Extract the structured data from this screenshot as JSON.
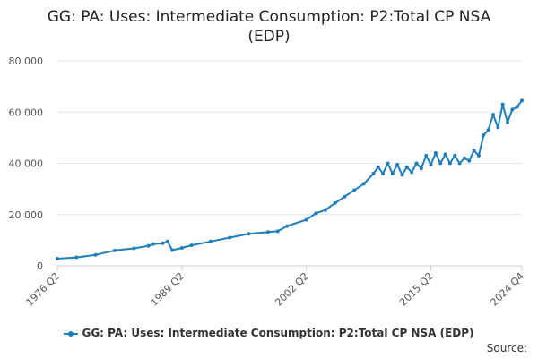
{
  "chart_data": {
    "type": "line",
    "title_lines": [
      "GG: PA: Uses: Intermediate Consumption: P2:Total CP NSA",
      "(EDP)"
    ],
    "ylim": [
      0,
      80000
    ],
    "yticks": [
      0,
      20000,
      40000,
      60000,
      80000
    ],
    "ytick_labels": [
      "0",
      "20 000",
      "40 000",
      "60 000",
      "80 000"
    ],
    "xlim": [
      "1976 Q2",
      "2024 Q4"
    ],
    "xticks": [
      "1976 Q2",
      "1989 Q2",
      "2002 Q2",
      "2015 Q2",
      "2024 Q4"
    ],
    "grid": true,
    "legend_position": "bottom",
    "series": [
      {
        "name": "GG: PA: Uses: Intermediate Consumption: P2:Total CP NSA (EDP)",
        "color": "#1f7dbb",
        "points": [
          [
            "1976 Q2",
            2800
          ],
          [
            "1978 Q2",
            3300
          ],
          [
            "1980 Q2",
            4300
          ],
          [
            "1982 Q2",
            6000
          ],
          [
            "1984 Q2",
            6800
          ],
          [
            "1985 Q4",
            7800
          ],
          [
            "1986 Q2",
            8500
          ],
          [
            "1987 Q2",
            8800
          ],
          [
            "1987 Q4",
            9500
          ],
          [
            "1988 Q2",
            6100
          ],
          [
            "1989 Q2",
            7000
          ],
          [
            "1990 Q2",
            8000
          ],
          [
            "1992 Q2",
            9500
          ],
          [
            "1994 Q2",
            11000
          ],
          [
            "1996 Q2",
            12500
          ],
          [
            "1998 Q2",
            13200
          ],
          [
            "1999 Q2",
            13500
          ],
          [
            "2000 Q2",
            15500
          ],
          [
            "2002 Q2",
            18000
          ],
          [
            "2003 Q2",
            20500
          ],
          [
            "2004 Q2",
            21800
          ],
          [
            "2005 Q2",
            24500
          ],
          [
            "2006 Q2",
            27000
          ],
          [
            "2007 Q2",
            29500
          ],
          [
            "2008 Q2",
            32000
          ],
          [
            "2009 Q2",
            36000
          ],
          [
            "2009 Q4",
            38500
          ],
          [
            "2010 Q2",
            36000
          ],
          [
            "2010 Q4",
            40000
          ],
          [
            "2011 Q2",
            36000
          ],
          [
            "2011 Q4",
            39500
          ],
          [
            "2012 Q2",
            35500
          ],
          [
            "2012 Q4",
            38500
          ],
          [
            "2013 Q2",
            36500
          ],
          [
            "2013 Q4",
            40000
          ],
          [
            "2014 Q2",
            38000
          ],
          [
            "2014 Q4",
            43000
          ],
          [
            "2015 Q2",
            39500
          ],
          [
            "2015 Q4",
            44000
          ],
          [
            "2016 Q2",
            40000
          ],
          [
            "2016 Q4",
            43500
          ],
          [
            "2017 Q2",
            40000
          ],
          [
            "2017 Q4",
            43000
          ],
          [
            "2018 Q2",
            40000
          ],
          [
            "2018 Q4",
            42000
          ],
          [
            "2019 Q2",
            41000
          ],
          [
            "2019 Q4",
            45000
          ],
          [
            "2020 Q2",
            43000
          ],
          [
            "2020 Q4",
            51000
          ],
          [
            "2021 Q2",
            53000
          ],
          [
            "2021 Q4",
            59000
          ],
          [
            "2022 Q2",
            54000
          ],
          [
            "2022 Q4",
            63000
          ],
          [
            "2023 Q2",
            56000
          ],
          [
            "2023 Q4",
            61000
          ],
          [
            "2024 Q2",
            62000
          ],
          [
            "2024 Q4",
            64500
          ]
        ]
      }
    ]
  },
  "legend": {
    "label": "GG: PA: Uses: Intermediate Consumption: P2:Total CP NSA (EDP)"
  },
  "footer": {
    "source_label": "Source:"
  }
}
